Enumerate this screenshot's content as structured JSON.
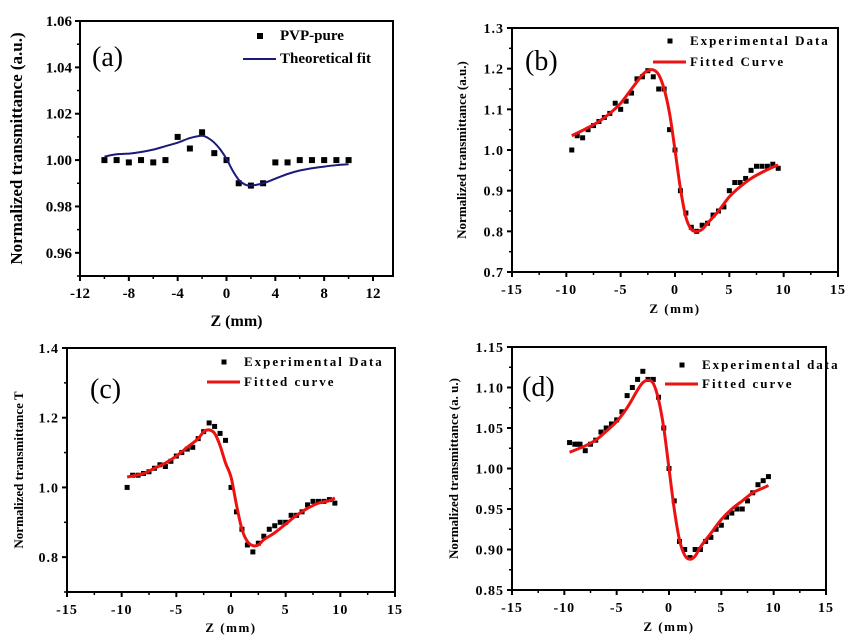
{
  "chart_data": [
    {
      "id": "a",
      "type": "scatter",
      "panel_label": "(a)",
      "title": "",
      "xlabel": "Z (mm)",
      "ylabel": "Normalized transmittance (a.u.)",
      "xlim": [
        -12,
        12
      ],
      "ylim": [
        0.95,
        1.06
      ],
      "xticks": [
        -12,
        -8,
        -4,
        0,
        4,
        8,
        12
      ],
      "xtick_labels": [
        "-12",
        "-8",
        "-4",
        "0",
        "4",
        "8",
        "12"
      ],
      "yticks": [
        0.96,
        0.98,
        1.0,
        1.02,
        1.04,
        1.06
      ],
      "ytick_labels": [
        "0.96",
        "0.98",
        "1.00",
        "1.02",
        "1.04",
        "1.06"
      ],
      "grid": false,
      "legend_position": "top-right",
      "series": [
        {
          "name": "PVP-pure",
          "kind": "markers",
          "color": "#000000",
          "x": [
            -10,
            -9,
            -8,
            -7,
            -6,
            -5,
            -4,
            -3,
            -2,
            -1,
            0,
            1,
            2,
            3,
            4,
            5,
            6,
            7,
            8,
            9,
            10
          ],
          "y": [
            1.0,
            1.0,
            0.999,
            1.0,
            0.999,
            1.0,
            1.01,
            1.005,
            1.012,
            1.003,
            1.0,
            0.99,
            0.989,
            0.99,
            0.999,
            0.999,
            1.0,
            1.0,
            1.0,
            1.0,
            1.0
          ]
        },
        {
          "name": "Theoretical fit",
          "kind": "line",
          "color": "#1a1a7a",
          "x": [
            -10,
            -9,
            -8,
            -7,
            -6,
            -5,
            -4,
            -3,
            -2,
            -1.5,
            -1,
            -0.5,
            0,
            0.5,
            1,
            1.5,
            2,
            3,
            4,
            5,
            6,
            7,
            8,
            9,
            10
          ],
          "y": [
            1.0015,
            1.0025,
            1.0028,
            1.0035,
            1.0045,
            1.006,
            1.0075,
            1.0095,
            1.0105,
            1.0095,
            1.0075,
            1.0045,
            1.0005,
            0.9955,
            0.9915,
            0.9895,
            0.989,
            0.99,
            0.992,
            0.994,
            0.9955,
            0.9965,
            0.9972,
            0.9978,
            0.9982
          ]
        }
      ]
    },
    {
      "id": "b",
      "type": "scatter",
      "panel_label": "(b)",
      "title": "",
      "xlabel": "Z (mm)",
      "ylabel": "Normalized transmittance (a.u.)",
      "xlim": [
        -15,
        15
      ],
      "ylim": [
        0.7,
        1.3
      ],
      "xticks": [
        -15,
        -10,
        -5,
        0,
        5,
        10,
        15
      ],
      "xtick_labels": [
        "-15",
        "-10",
        "-5",
        "0",
        "5",
        "10",
        "15"
      ],
      "yticks": [
        0.7,
        0.8,
        0.9,
        1.0,
        1.1,
        1.2,
        1.3
      ],
      "ytick_labels": [
        "0.7",
        "0.8",
        "0.9",
        "1.0",
        "1.1",
        "1.2",
        "1.3"
      ],
      "grid": false,
      "legend_position": "top-right",
      "series": [
        {
          "name": "Experimental Data",
          "kind": "markers",
          "color": "#000000",
          "x": [
            -9.5,
            -9,
            -8.5,
            -8,
            -7.5,
            -7,
            -6.5,
            -6,
            -5.5,
            -5,
            -4.5,
            -4,
            -3.5,
            -3,
            -2.5,
            -2,
            -1.5,
            -1,
            -0.5,
            0,
            0.5,
            1,
            1.5,
            2,
            2.5,
            3,
            3.5,
            4,
            4.5,
            5,
            5.5,
            6,
            6.5,
            7,
            7.5,
            8,
            8.5,
            9,
            9.5
          ],
          "y": [
            1.0,
            1.035,
            1.03,
            1.05,
            1.06,
            1.07,
            1.08,
            1.09,
            1.115,
            1.1,
            1.12,
            1.14,
            1.175,
            1.18,
            1.195,
            1.18,
            1.15,
            1.15,
            1.05,
            1.0,
            0.9,
            0.845,
            0.81,
            0.8,
            0.815,
            0.82,
            0.84,
            0.85,
            0.86,
            0.9,
            0.92,
            0.92,
            0.93,
            0.95,
            0.96,
            0.96,
            0.96,
            0.965,
            0.955
          ]
        },
        {
          "name": "Fitted Curve",
          "kind": "line",
          "color": "#ee1111",
          "x": [
            -9.5,
            -8,
            -7,
            -6,
            -5,
            -4,
            -3,
            -2.5,
            -2,
            -1.5,
            -1,
            -0.5,
            0,
            0.5,
            1,
            1.5,
            2,
            2.5,
            3,
            4,
            5,
            6,
            7,
            8,
            9,
            9.5
          ],
          "y": [
            1.035,
            1.055,
            1.07,
            1.09,
            1.115,
            1.15,
            1.185,
            1.195,
            1.197,
            1.185,
            1.15,
            1.09,
            1.0,
            0.905,
            0.835,
            0.805,
            0.8,
            0.805,
            0.82,
            0.85,
            0.885,
            0.91,
            0.93,
            0.945,
            0.958,
            0.963
          ]
        }
      ]
    },
    {
      "id": "c",
      "type": "scatter",
      "panel_label": "(c)",
      "title": "",
      "xlabel": "Z (mm)",
      "ylabel": "Normalized transmittance T",
      "xlim": [
        -15,
        15
      ],
      "ylim": [
        0.7,
        1.4
      ],
      "xticks": [
        -15,
        -10,
        -5,
        0,
        5,
        10,
        15
      ],
      "xtick_labels": [
        "-15",
        "-10",
        "-5",
        "0",
        "5",
        "10",
        "15"
      ],
      "yticks": [
        0.8,
        1.0,
        1.2,
        1.4
      ],
      "ytick_labels": [
        "0.8",
        "1.0",
        "1.2",
        "1.4"
      ],
      "grid": false,
      "legend_position": "top-right",
      "series": [
        {
          "name": "Experimental Data",
          "kind": "markers",
          "color": "#000000",
          "x": [
            -9.5,
            -9,
            -8.5,
            -8,
            -7.5,
            -7,
            -6.5,
            -6,
            -5.5,
            -5,
            -4.5,
            -4,
            -3.5,
            -3,
            -2.5,
            -2,
            -1.5,
            -1,
            -0.5,
            0,
            0.5,
            1,
            1.5,
            2,
            2.5,
            3,
            3.5,
            4,
            4.5,
            5,
            5.5,
            6,
            6.5,
            7,
            7.5,
            8,
            8.5,
            9,
            9.5
          ],
          "y": [
            1.0,
            1.035,
            1.035,
            1.04,
            1.045,
            1.055,
            1.065,
            1.06,
            1.075,
            1.09,
            1.1,
            1.11,
            1.115,
            1.14,
            1.16,
            1.185,
            1.175,
            1.155,
            1.135,
            1.0,
            0.93,
            0.88,
            0.835,
            0.815,
            0.84,
            0.86,
            0.88,
            0.89,
            0.9,
            0.9,
            0.92,
            0.92,
            0.93,
            0.95,
            0.96,
            0.96,
            0.96,
            0.965,
            0.955
          ]
        },
        {
          "name": "Fitted curve",
          "kind": "line",
          "color": "#ee1111",
          "x": [
            -9.5,
            -8,
            -7,
            -6,
            -5,
            -4,
            -3,
            -2.5,
            -2,
            -1.5,
            -1,
            -0.5,
            0,
            0.5,
            1,
            1.5,
            2,
            2.5,
            3,
            4,
            5,
            6,
            7,
            8,
            9,
            9.5
          ],
          "y": [
            1.03,
            1.04,
            1.055,
            1.07,
            1.09,
            1.115,
            1.14,
            1.16,
            1.165,
            1.155,
            1.12,
            1.07,
            1.03,
            0.95,
            0.88,
            0.845,
            0.833,
            0.835,
            0.85,
            0.87,
            0.895,
            0.92,
            0.94,
            0.955,
            0.962,
            0.97
          ]
        }
      ]
    },
    {
      "id": "d",
      "type": "scatter",
      "panel_label": "(d)",
      "title": "",
      "xlabel": "Z (mm)",
      "ylabel": "Normalized transmittance (a. u.)",
      "xlim": [
        -15,
        15
      ],
      "ylim": [
        0.85,
        1.15
      ],
      "xticks": [
        -15,
        -10,
        -5,
        0,
        5,
        10,
        15
      ],
      "xtick_labels": [
        "-15",
        "-10",
        "-5",
        "0",
        "5",
        "10",
        "15"
      ],
      "yticks": [
        0.85,
        0.9,
        0.95,
        1.0,
        1.05,
        1.1,
        1.15
      ],
      "ytick_labels": [
        "0.85",
        "0.90",
        "0.95",
        "1.00",
        "1.05",
        "1.10",
        "1.15"
      ],
      "grid": false,
      "legend_position": "top-right",
      "series": [
        {
          "name": "Experimental data",
          "kind": "markers",
          "color": "#000000",
          "x": [
            -9.5,
            -9,
            -8.75,
            -8.5,
            -8,
            -7.5,
            -7,
            -6.5,
            -6,
            -5.5,
            -5,
            -4.5,
            -4,
            -3.5,
            -3,
            -2.5,
            -2,
            -1.5,
            -1,
            -0.5,
            0,
            0.5,
            1,
            1.5,
            2,
            2.5,
            3,
            3.5,
            4,
            4.5,
            5,
            5.5,
            6,
            6.5,
            7,
            7.5,
            8,
            8.5,
            9,
            9.5
          ],
          "y": [
            1.032,
            1.03,
            1.03,
            1.03,
            1.022,
            1.03,
            1.035,
            1.045,
            1.05,
            1.055,
            1.06,
            1.07,
            1.09,
            1.1,
            1.11,
            1.12,
            1.11,
            1.11,
            1.088,
            1.05,
            1.0,
            0.96,
            0.91,
            0.9,
            0.89,
            0.9,
            0.9,
            0.91,
            0.915,
            0.925,
            0.93,
            0.94,
            0.945,
            0.95,
            0.95,
            0.96,
            0.97,
            0.98,
            0.985,
            0.99
          ]
        },
        {
          "name": "Fitted curve",
          "kind": "line",
          "color": "#ee1111",
          "x": [
            -9.5,
            -8,
            -7,
            -6,
            -5,
            -4,
            -3,
            -2.5,
            -2,
            -1.5,
            -1,
            -0.5,
            0,
            0.5,
            1,
            1.5,
            2,
            2.5,
            3,
            4,
            5,
            6,
            7,
            8,
            9,
            9.5
          ],
          "y": [
            1.02,
            1.028,
            1.035,
            1.046,
            1.058,
            1.075,
            1.097,
            1.106,
            1.109,
            1.105,
            1.085,
            1.05,
            1.0,
            0.95,
            0.912,
            0.893,
            0.888,
            0.892,
            0.903,
            0.92,
            0.937,
            0.95,
            0.96,
            0.97,
            0.976,
            0.979
          ]
        }
      ]
    }
  ]
}
